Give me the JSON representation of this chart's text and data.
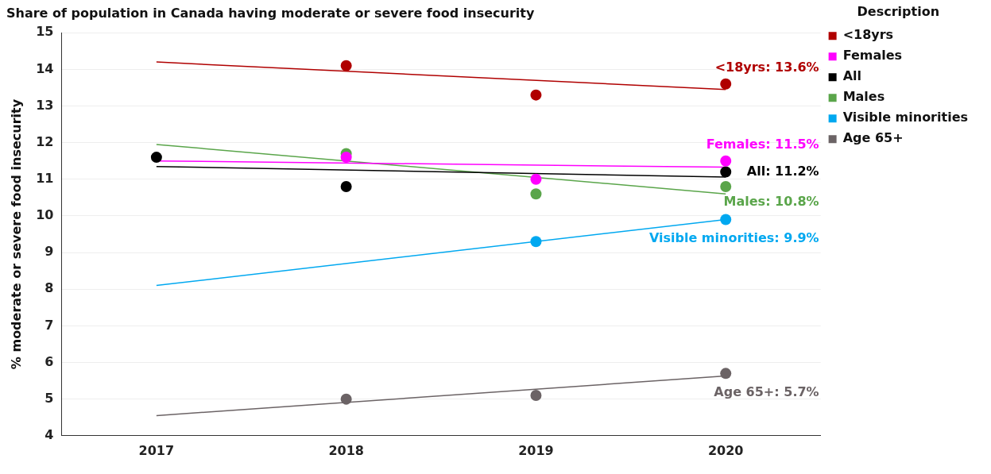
{
  "chart_data": {
    "type": "scatter",
    "title": "Share of population in Canada having moderate or severe food insecurity",
    "ylabel": "% moderate or severe food insecurity",
    "legend_title": "Description",
    "legend": "right",
    "grid": "y",
    "marker": "circle",
    "categories": [
      "2017",
      "2018",
      "2019",
      "2020"
    ],
    "ylim": [
      4,
      15
    ],
    "yticks": [
      4,
      5,
      6,
      7,
      8,
      9,
      10,
      11,
      12,
      13,
      14,
      15
    ],
    "series": [
      {
        "name": "<18yrs",
        "color": "#b00000",
        "values": [
          null,
          14.1,
          13.3,
          13.6
        ],
        "value_labels": [
          null,
          null,
          null,
          "<18yrs: 13.6%"
        ]
      },
      {
        "name": "Females",
        "color": "#ff00ff",
        "values": [
          null,
          11.6,
          11.0,
          11.5
        ],
        "value_labels": [
          null,
          null,
          null,
          "Females: 11.5%"
        ]
      },
      {
        "name": "All",
        "color": "#000000",
        "values": [
          11.6,
          10.8,
          null,
          11.2
        ],
        "value_labels": [
          null,
          null,
          null,
          "All: 11.2%"
        ]
      },
      {
        "name": "Males",
        "color": "#5aa54a",
        "values": [
          null,
          11.7,
          10.6,
          10.8
        ],
        "value_labels": [
          null,
          null,
          null,
          "Males: 10.8%"
        ]
      },
      {
        "name": "Visible minorities",
        "color": "#00a8f0",
        "values": [
          null,
          null,
          9.3,
          9.9
        ],
        "value_labels": [
          null,
          null,
          null,
          "Visible minorities: 9.9%"
        ]
      },
      {
        "name": "Age 65+",
        "color": "#6b6365",
        "values": [
          null,
          5.0,
          5.1,
          5.7
        ],
        "value_labels": [
          null,
          null,
          null,
          "Age 65+: 5.7%"
        ]
      },
      {
        "type": "line",
        "marker": "none",
        "color": "#b00000",
        "values": [
          14.2,
          null,
          null,
          13.45
        ]
      },
      {
        "type": "line",
        "marker": "none",
        "color": "#ff00ff",
        "values": [
          11.5,
          null,
          null,
          11.33
        ]
      },
      {
        "type": "line",
        "marker": "none",
        "color": "#000000",
        "values": [
          11.35,
          null,
          null,
          11.06
        ]
      },
      {
        "type": "line",
        "marker": "none",
        "color": "#5aa54a",
        "values": [
          11.95,
          null,
          null,
          10.6
        ]
      },
      {
        "type": "line",
        "marker": "none",
        "color": "#00a8f0",
        "values": [
          8.1,
          null,
          null,
          9.9
        ]
      },
      {
        "type": "line",
        "marker": "none",
        "color": "#6b6365",
        "values": [
          4.55,
          null,
          null,
          5.63
        ]
      }
    ]
  }
}
